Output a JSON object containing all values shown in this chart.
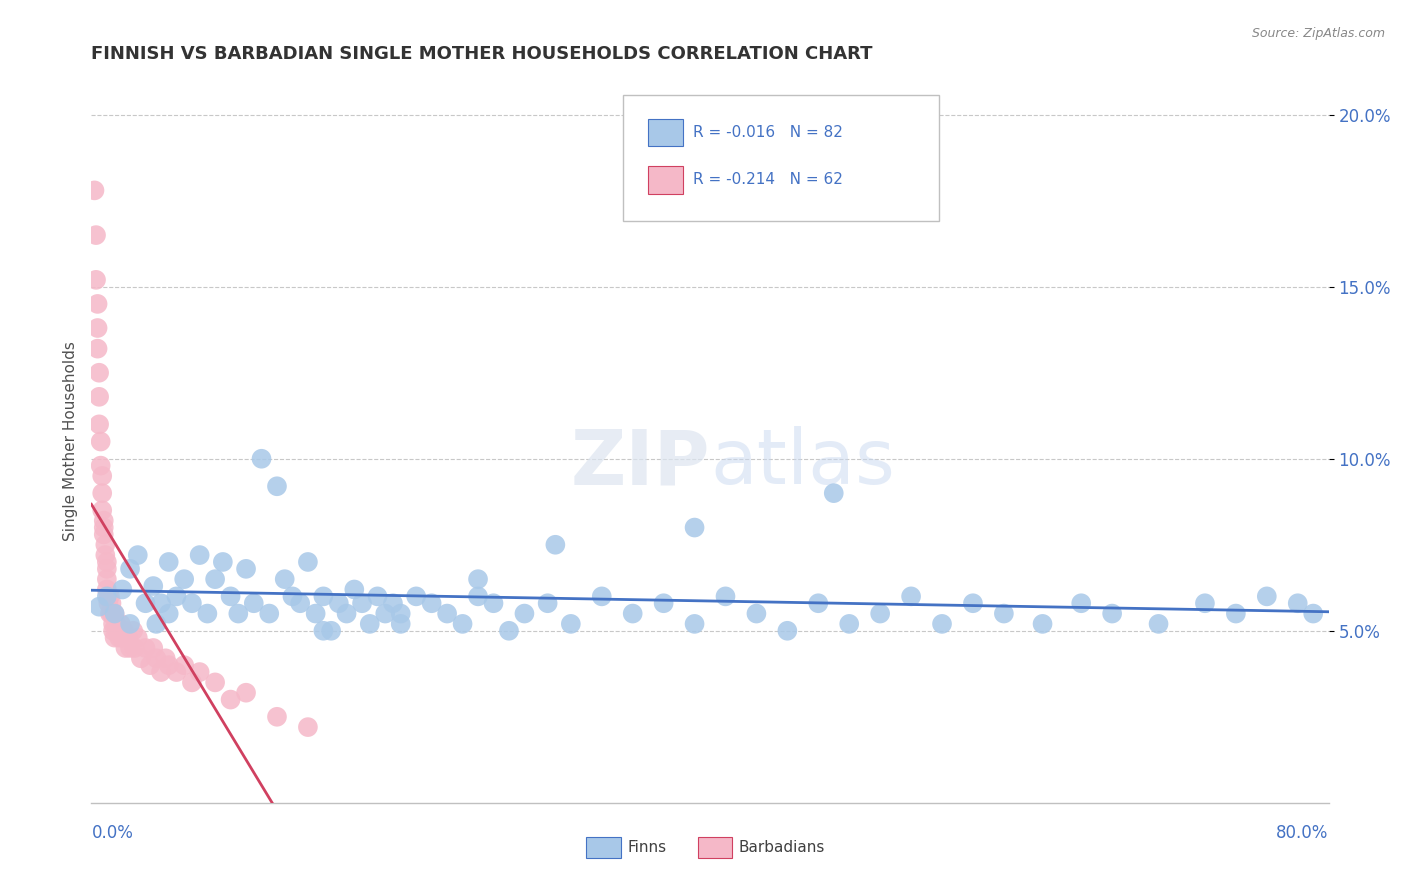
{
  "title": "FINNISH VS BARBADIAN SINGLE MOTHER HOUSEHOLDS CORRELATION CHART",
  "source": "Source: ZipAtlas.com",
  "ylabel": "Single Mother Households",
  "xlim": [
    0.0,
    0.8
  ],
  "ylim": [
    0.0,
    0.21
  ],
  "yticks": [
    0.05,
    0.1,
    0.15,
    0.2
  ],
  "ytick_labels": [
    "5.0%",
    "10.0%",
    "15.0%",
    "20.0%"
  ],
  "finn_color": "#a8c8e8",
  "barb_color": "#f5b8c8",
  "finn_line_color": "#4472c4",
  "barb_line_color": "#d04060",
  "background_color": "#ffffff",
  "grid_color": "#c8c8c8",
  "title_color": "#333333",
  "axis_label_color": "#4472c4",
  "finns_x": [
    0.005,
    0.01,
    0.015,
    0.02,
    0.025,
    0.025,
    0.03,
    0.035,
    0.04,
    0.042,
    0.045,
    0.05,
    0.05,
    0.055,
    0.06,
    0.065,
    0.07,
    0.075,
    0.08,
    0.085,
    0.09,
    0.095,
    0.1,
    0.105,
    0.11,
    0.115,
    0.12,
    0.125,
    0.13,
    0.135,
    0.14,
    0.145,
    0.15,
    0.155,
    0.16,
    0.165,
    0.17,
    0.175,
    0.18,
    0.185,
    0.19,
    0.195,
    0.2,
    0.21,
    0.22,
    0.23,
    0.24,
    0.25,
    0.26,
    0.27,
    0.28,
    0.295,
    0.31,
    0.33,
    0.35,
    0.37,
    0.39,
    0.41,
    0.43,
    0.45,
    0.47,
    0.49,
    0.51,
    0.53,
    0.55,
    0.57,
    0.59,
    0.615,
    0.64,
    0.66,
    0.69,
    0.72,
    0.74,
    0.76,
    0.78,
    0.79,
    0.48,
    0.39,
    0.3,
    0.25,
    0.2,
    0.15
  ],
  "finns_y": [
    0.057,
    0.06,
    0.055,
    0.062,
    0.068,
    0.052,
    0.072,
    0.058,
    0.063,
    0.052,
    0.058,
    0.055,
    0.07,
    0.06,
    0.065,
    0.058,
    0.072,
    0.055,
    0.065,
    0.07,
    0.06,
    0.055,
    0.068,
    0.058,
    0.1,
    0.055,
    0.092,
    0.065,
    0.06,
    0.058,
    0.07,
    0.055,
    0.06,
    0.05,
    0.058,
    0.055,
    0.062,
    0.058,
    0.052,
    0.06,
    0.055,
    0.058,
    0.052,
    0.06,
    0.058,
    0.055,
    0.052,
    0.06,
    0.058,
    0.05,
    0.055,
    0.058,
    0.052,
    0.06,
    0.055,
    0.058,
    0.052,
    0.06,
    0.055,
    0.05,
    0.058,
    0.052,
    0.055,
    0.06,
    0.052,
    0.058,
    0.055,
    0.052,
    0.058,
    0.055,
    0.052,
    0.058,
    0.055,
    0.06,
    0.058,
    0.055,
    0.09,
    0.08,
    0.075,
    0.065,
    0.055,
    0.05
  ],
  "barbadians_x": [
    0.002,
    0.003,
    0.003,
    0.004,
    0.004,
    0.004,
    0.005,
    0.005,
    0.005,
    0.006,
    0.006,
    0.007,
    0.007,
    0.007,
    0.008,
    0.008,
    0.008,
    0.009,
    0.009,
    0.01,
    0.01,
    0.01,
    0.01,
    0.011,
    0.011,
    0.012,
    0.012,
    0.013,
    0.013,
    0.014,
    0.014,
    0.015,
    0.015,
    0.016,
    0.017,
    0.018,
    0.019,
    0.02,
    0.021,
    0.022,
    0.024,
    0.025,
    0.027,
    0.028,
    0.03,
    0.032,
    0.035,
    0.038,
    0.04,
    0.042,
    0.045,
    0.048,
    0.05,
    0.055,
    0.06,
    0.065,
    0.07,
    0.08,
    0.09,
    0.1,
    0.12,
    0.14
  ],
  "barbadians_y": [
    0.178,
    0.165,
    0.152,
    0.145,
    0.138,
    0.132,
    0.125,
    0.118,
    0.11,
    0.105,
    0.098,
    0.095,
    0.09,
    0.085,
    0.082,
    0.08,
    0.078,
    0.075,
    0.072,
    0.07,
    0.068,
    0.065,
    0.062,
    0.06,
    0.058,
    0.06,
    0.055,
    0.058,
    0.055,
    0.052,
    0.05,
    0.055,
    0.048,
    0.052,
    0.05,
    0.048,
    0.052,
    0.048,
    0.05,
    0.045,
    0.048,
    0.045,
    0.05,
    0.045,
    0.048,
    0.042,
    0.045,
    0.04,
    0.045,
    0.042,
    0.038,
    0.042,
    0.04,
    0.038,
    0.04,
    0.035,
    0.038,
    0.035,
    0.03,
    0.032,
    0.025,
    0.022
  ]
}
